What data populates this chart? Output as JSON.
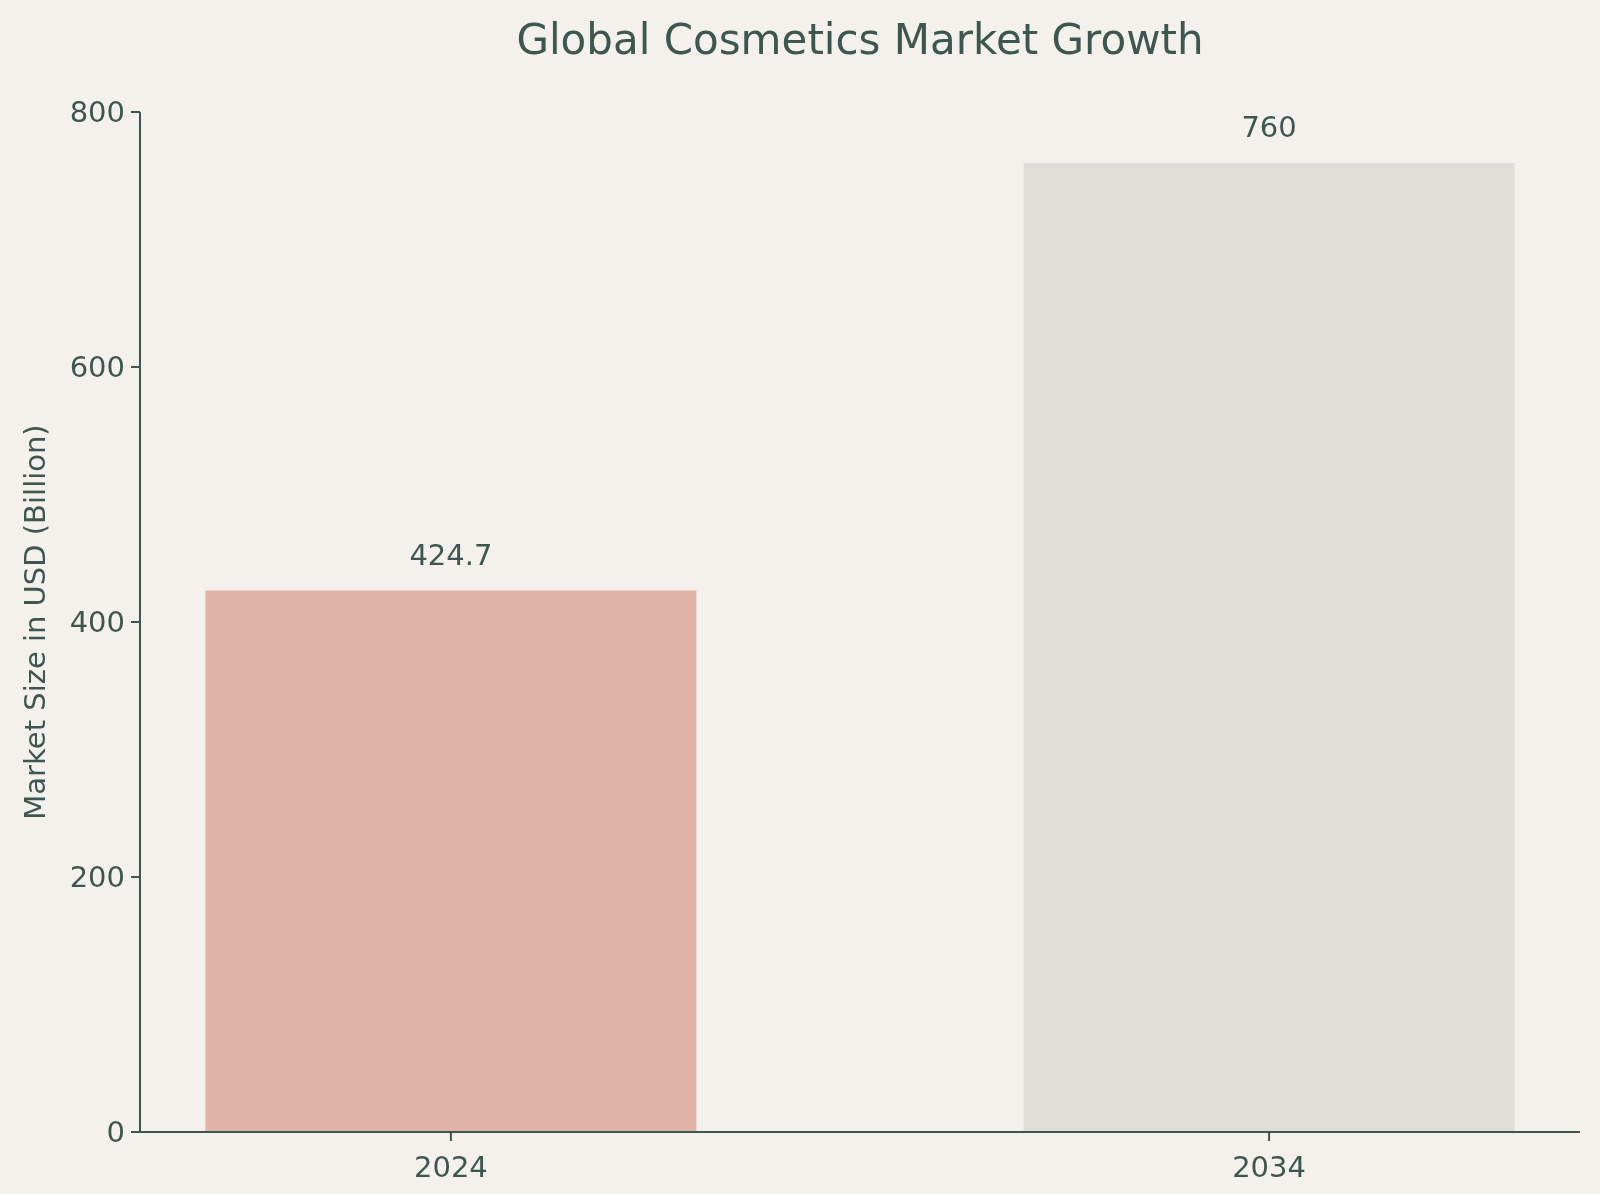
{
  "chart_data": {
    "type": "bar",
    "title": "Global Cosmetics Market Growth",
    "ylabel": "Market Size in USD (Billion)",
    "categories": [
      "2024",
      "2034"
    ],
    "values": [
      424.7,
      760
    ],
    "colors": [
      "#dfb3a8",
      "#e1ded7"
    ],
    "ylim": [
      0,
      800
    ],
    "yticks": [
      0,
      200,
      400,
      600,
      800
    ],
    "grid": false,
    "data_labels": true
  }
}
